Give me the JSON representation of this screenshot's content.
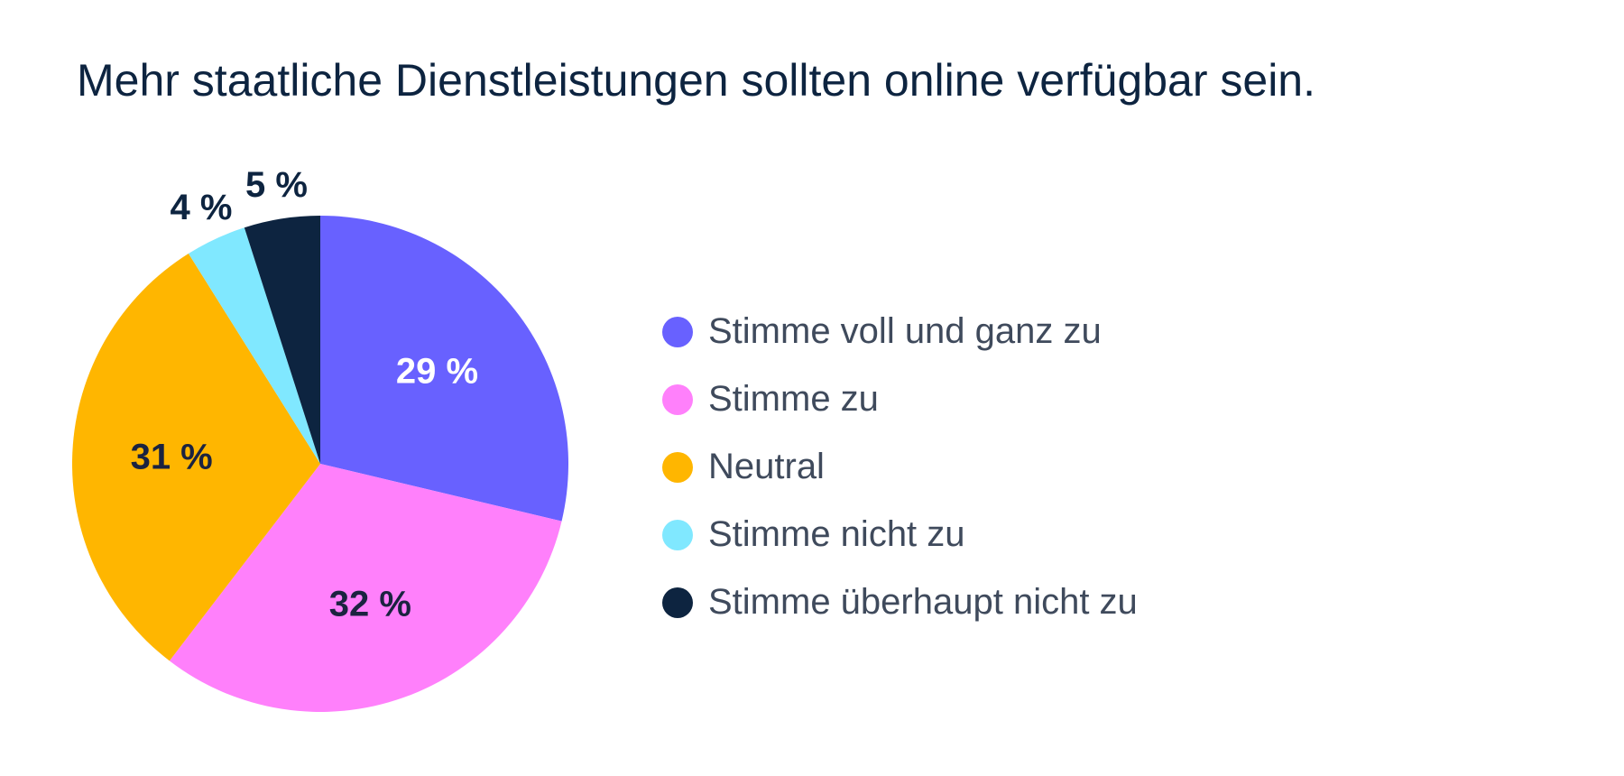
{
  "chart_data": {
    "type": "pie",
    "title": "Mehr staatliche Dienstleistungen sollten online verfügbar sein.",
    "categories": [
      "Stimme voll und ganz zu",
      "Stimme zu",
      "Neutral",
      "Stimme nicht zu",
      "Stimme überhaupt nicht zu"
    ],
    "values": [
      29,
      32,
      31,
      4,
      5
    ],
    "value_labels": [
      "29 %",
      "32 %",
      "31 %",
      "4 %",
      "5 %"
    ],
    "colors": [
      "#6861ff",
      "#ff80fb",
      "#ffb600",
      "#80e8ff",
      "#0d2440"
    ],
    "label_colors": [
      "#ffffff",
      "#1b2340",
      "#1b2340",
      "#0d2440",
      "#0d2440"
    ],
    "legend_position": "right",
    "start_angle": "12 o'clock",
    "direction": "clockwise"
  }
}
